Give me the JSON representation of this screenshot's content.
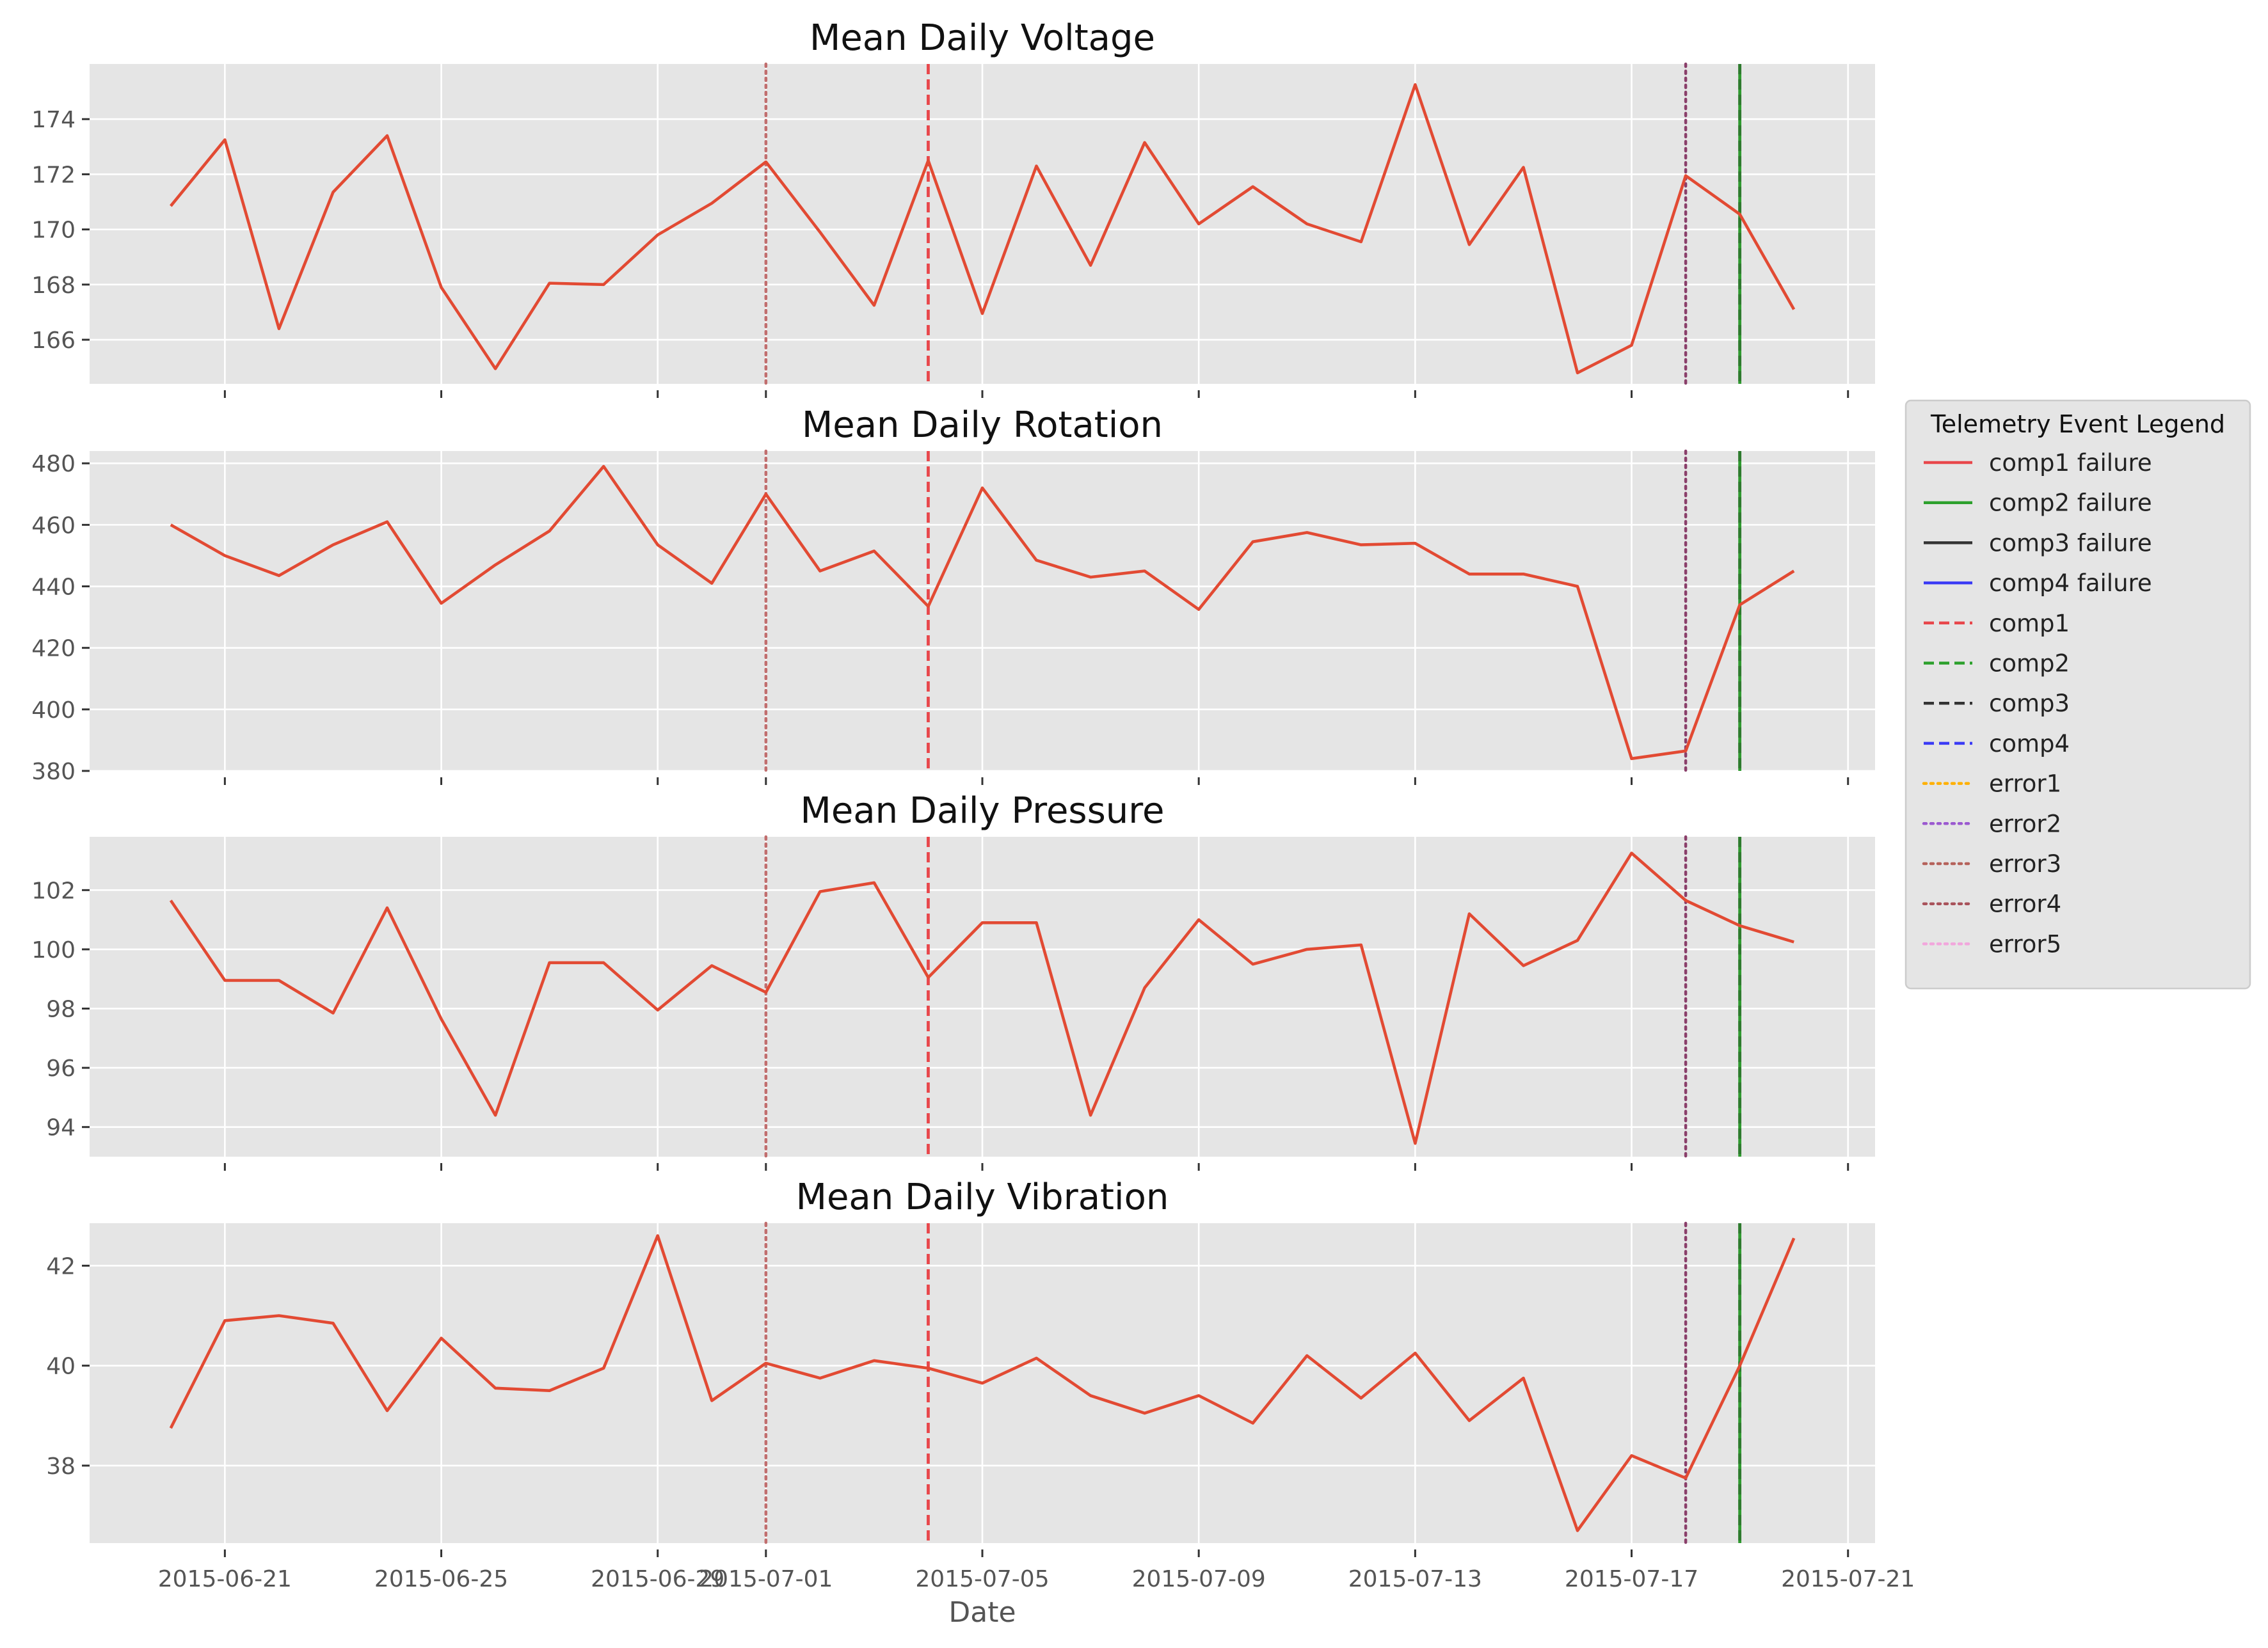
{
  "chart_data": {
    "type": "line",
    "xlabel": "Date",
    "x": [
      "2015-06-20",
      "2015-06-21",
      "2015-06-22",
      "2015-06-23",
      "2015-06-24",
      "2015-06-25",
      "2015-06-26",
      "2015-06-27",
      "2015-06-28",
      "2015-06-29",
      "2015-06-30",
      "2015-07-01",
      "2015-07-02",
      "2015-07-03",
      "2015-07-04",
      "2015-07-05",
      "2015-07-06",
      "2015-07-07",
      "2015-07-08",
      "2015-07-09",
      "2015-07-10",
      "2015-07-11",
      "2015-07-12",
      "2015-07-13",
      "2015-07-14",
      "2015-07-15",
      "2015-07-16",
      "2015-07-17",
      "2015-07-18",
      "2015-07-19",
      "2015-07-20"
    ],
    "xlim": [
      "2015-06-18T12:00",
      "2015-07-21T12:00"
    ],
    "x_ticks": [
      "2015-06-21",
      "2015-06-25",
      "2015-06-29",
      "2015-07-01",
      "2015-07-05",
      "2015-07-09",
      "2015-07-13",
      "2015-07-17",
      "2015-07-21"
    ],
    "grid": true,
    "panels": [
      {
        "title": "Mean Daily Voltage",
        "ylim": [
          164.4,
          176.0
        ],
        "yticks": [
          166,
          168,
          170,
          172,
          174
        ],
        "values": [
          170.85,
          173.25,
          166.4,
          171.35,
          173.4,
          167.9,
          164.95,
          168.05,
          168.0,
          169.8,
          170.95,
          172.45,
          169.9,
          167.25,
          172.5,
          166.95,
          172.3,
          168.7,
          173.15,
          170.2,
          171.55,
          170.2,
          169.55,
          175.25,
          169.45,
          172.25,
          164.8,
          165.8,
          171.95,
          170.55,
          167.1
        ]
      },
      {
        "title": "Mean Daily Rotation",
        "ylim": [
          380,
          484
        ],
        "yticks": [
          380,
          400,
          420,
          440,
          460,
          480
        ],
        "values": [
          460,
          450,
          443.5,
          453.5,
          461,
          434.5,
          447,
          458,
          479,
          453.5,
          441,
          470,
          445,
          451.5,
          433.5,
          472,
          448.5,
          443,
          445,
          432.5,
          454.5,
          457.5,
          453.5,
          454,
          444,
          444,
          440,
          384,
          386.5,
          434,
          445
        ]
      },
      {
        "title": "Mean Daily Pressure",
        "ylim": [
          93.0,
          103.8
        ],
        "yticks": [
          94,
          96,
          98,
          100,
          102
        ],
        "values": [
          101.65,
          98.95,
          98.95,
          97.85,
          101.4,
          97.65,
          94.4,
          99.55,
          99.55,
          97.95,
          99.45,
          98.55,
          101.95,
          102.25,
          99.05,
          100.9,
          100.9,
          94.4,
          98.7,
          101.0,
          99.5,
          100.0,
          100.15,
          93.45,
          101.2,
          99.45,
          100.3,
          103.25,
          101.65,
          100.8,
          100.25
        ]
      },
      {
        "title": "Mean Daily Vibration",
        "ylim": [
          36.45,
          42.85
        ],
        "yticks": [
          38,
          40,
          42
        ],
        "values": [
          38.75,
          40.9,
          41.0,
          40.85,
          39.1,
          40.55,
          39.55,
          39.5,
          39.95,
          42.6,
          39.3,
          40.05,
          39.75,
          40.1,
          39.95,
          39.65,
          40.15,
          39.4,
          39.05,
          39.4,
          38.85,
          40.2,
          39.35,
          40.25,
          38.9,
          39.75,
          36.7,
          38.2,
          37.75,
          40.0,
          42.55
        ]
      }
    ],
    "event_lines": [
      {
        "x": "2015-07-01",
        "style": "dotted",
        "color": "#c16e6e"
      },
      {
        "x": "2015-07-04",
        "style": "dashed",
        "color": "#e8474b"
      },
      {
        "x": "2015-07-18",
        "style": "dotted",
        "color": "#8a3f6a"
      },
      {
        "x": "2015-07-19",
        "style": "solid",
        "color": "#2e9a2e"
      },
      {
        "x": "2015-07-19",
        "style": "dashed",
        "color": "#2e7a2e"
      }
    ],
    "legend": {
      "title": "Telemetry Event Legend",
      "placement": "right",
      "entries": [
        {
          "label": "comp1 failure",
          "style": "solid",
          "color": "#e8474b"
        },
        {
          "label": "comp2 failure",
          "style": "solid",
          "color": "#2ca02c"
        },
        {
          "label": "comp3 failure",
          "style": "solid",
          "color": "#333333"
        },
        {
          "label": "comp4 failure",
          "style": "solid",
          "color": "#3b3bf5"
        },
        {
          "label": "comp1",
          "style": "dashed",
          "color": "#e8474b"
        },
        {
          "label": "comp2",
          "style": "dashed",
          "color": "#2ca02c"
        },
        {
          "label": "comp3",
          "style": "dashed",
          "color": "#333333"
        },
        {
          "label": "comp4",
          "style": "dashed",
          "color": "#3b3bf5"
        },
        {
          "label": "error1",
          "style": "dotted",
          "color": "#ffb000"
        },
        {
          "label": "error2",
          "style": "dotted",
          "color": "#9b59d0"
        },
        {
          "label": "error3",
          "style": "dotted",
          "color": "#b5625b"
        },
        {
          "label": "error4",
          "style": "dotted",
          "color": "#a8525a"
        },
        {
          "label": "error5",
          "style": "dotted",
          "color": "#f2a6dc"
        }
      ]
    }
  }
}
